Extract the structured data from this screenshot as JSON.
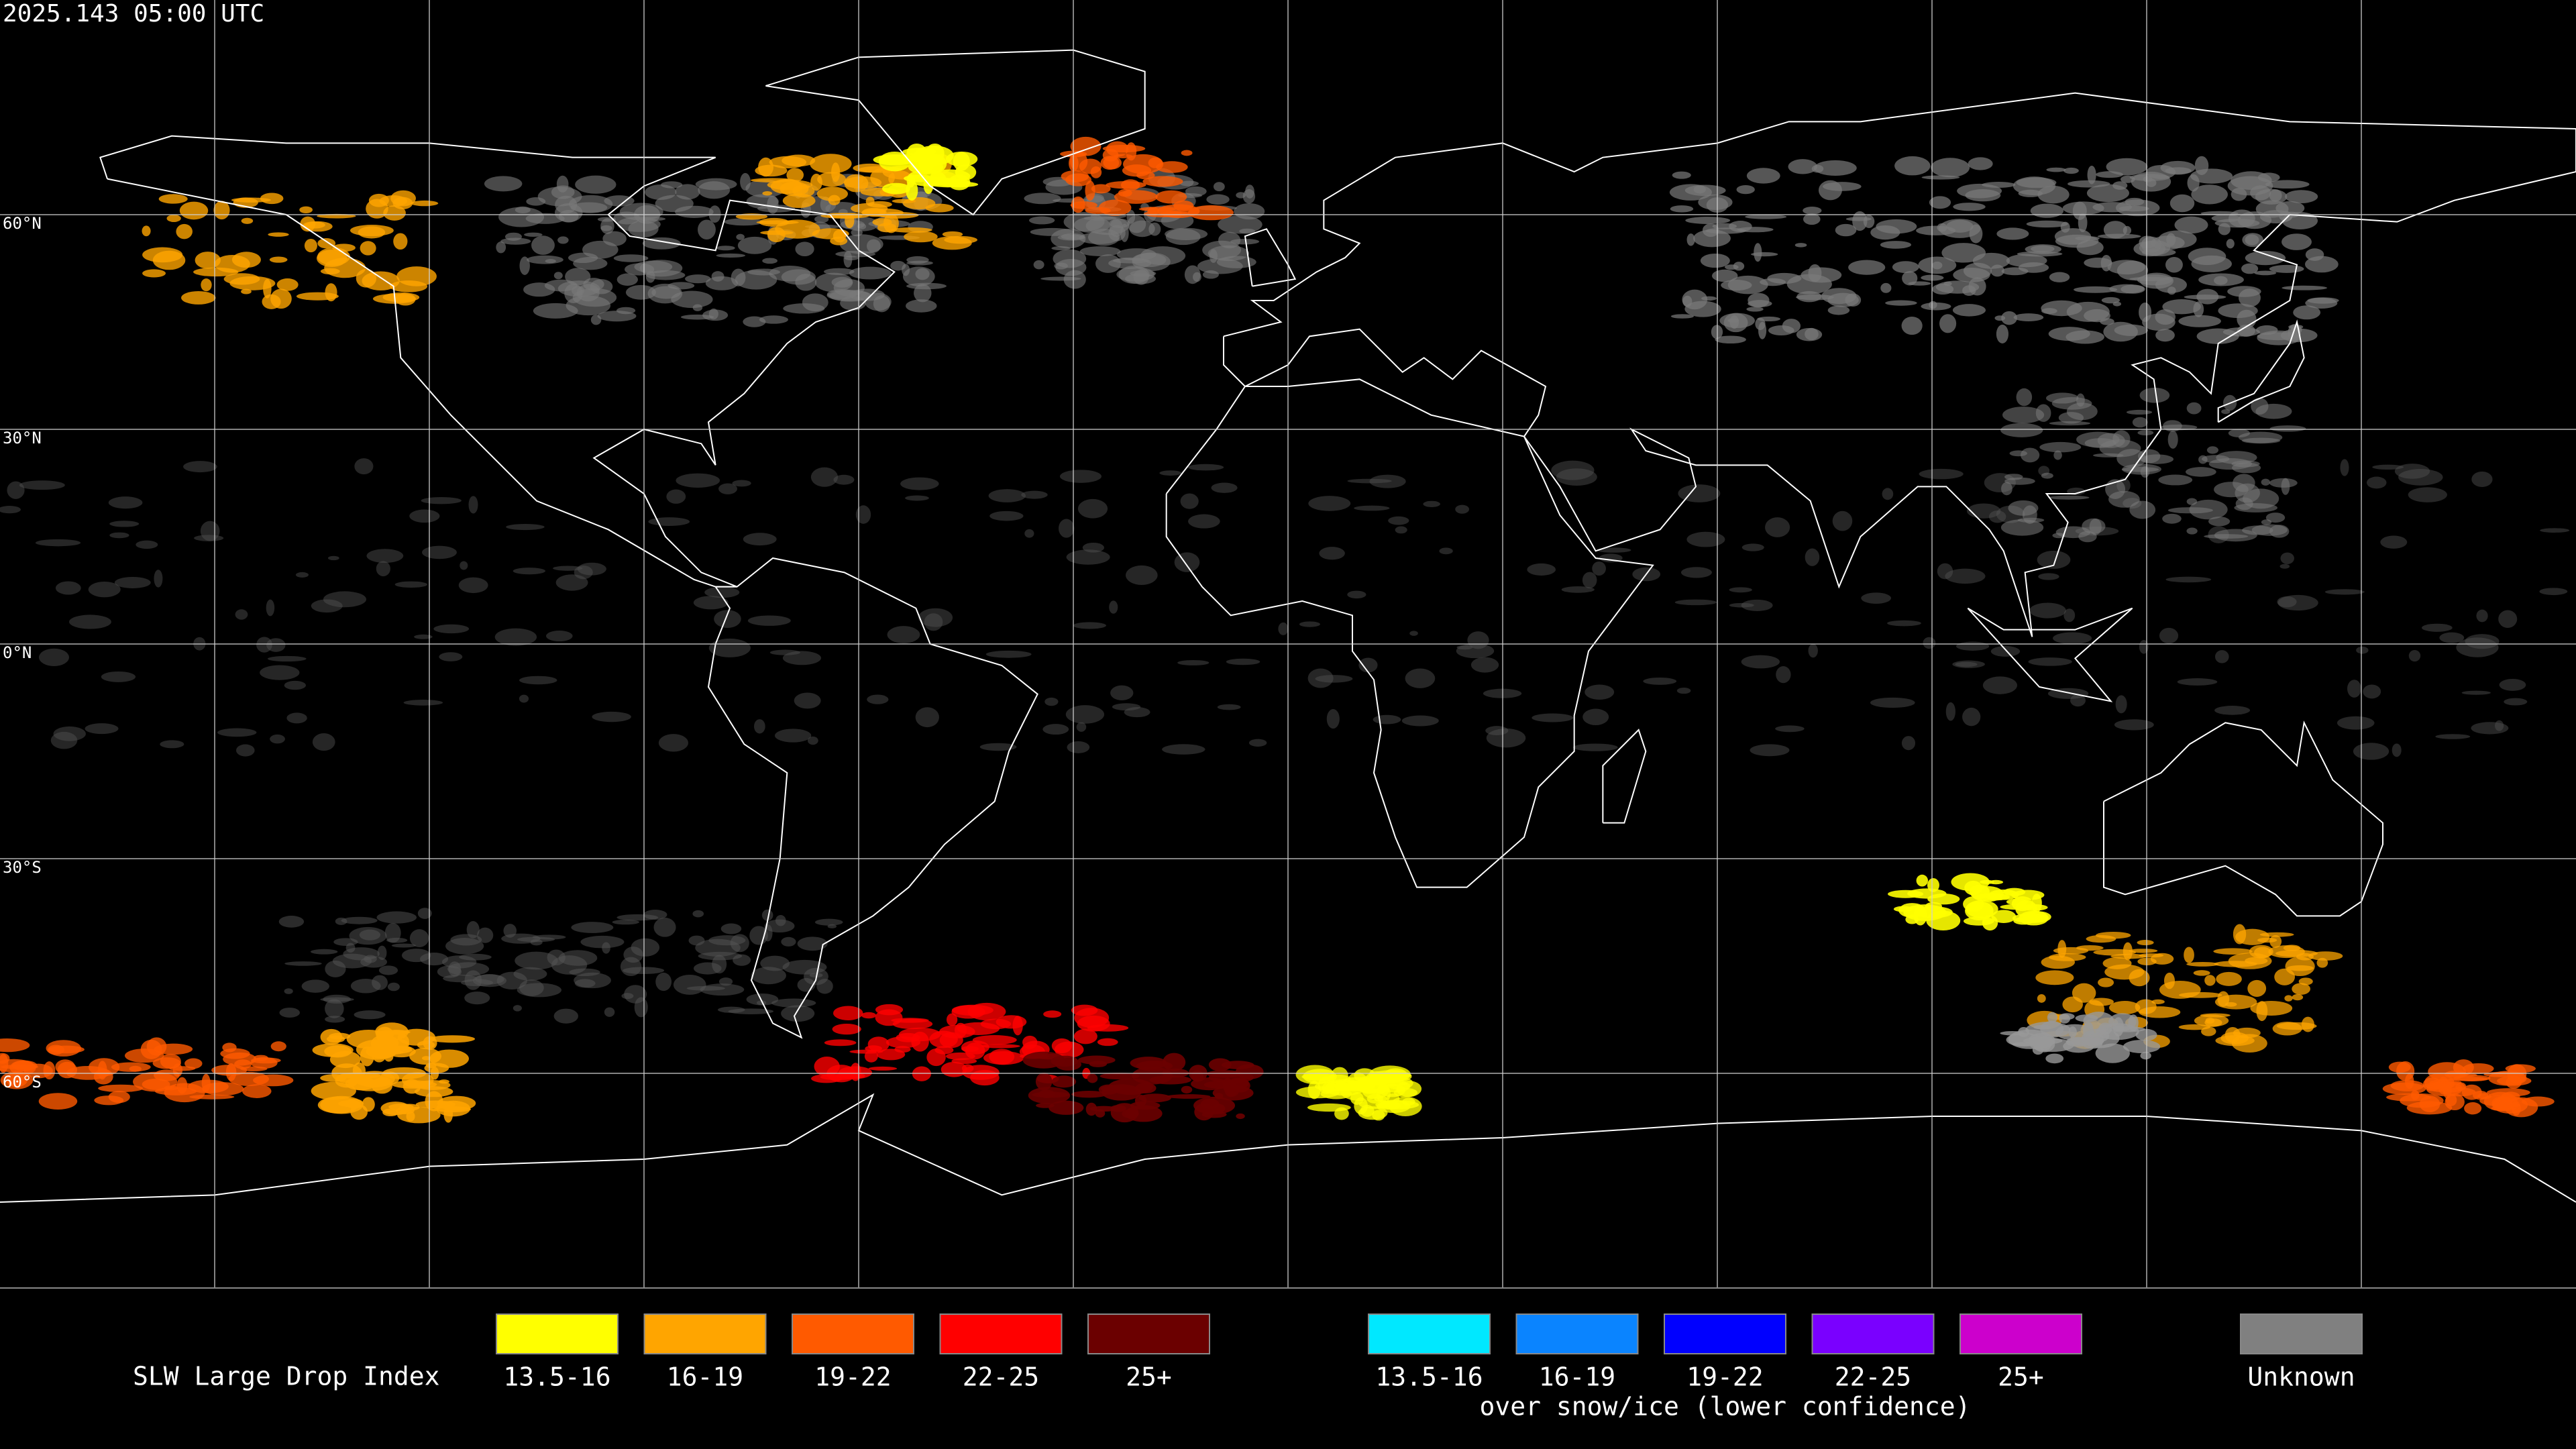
{
  "header": {
    "title": "2025.143 05:00 UTC"
  },
  "map": {
    "latitude_labels": [
      "60°N",
      "30°N",
      "0°N",
      "30°S",
      "60°S"
    ]
  },
  "legend": {
    "title": "SLW Large Drop Index",
    "groups": [
      {
        "items": [
          {
            "label": "13.5-16",
            "color": "#ffff00"
          },
          {
            "label": "16-19",
            "color": "#ffa500"
          },
          {
            "label": "19-22",
            "color": "#ff5a00"
          },
          {
            "label": "22-25",
            "color": "#ff0000"
          },
          {
            "label": "25+",
            "color": "#6b0000"
          }
        ]
      },
      {
        "items": [
          {
            "label": "13.5-16",
            "color": "#00e8ff"
          },
          {
            "label": "16-19",
            "color": "#0a84ff"
          },
          {
            "label": "19-22",
            "color": "#0000ff"
          },
          {
            "label": "22-25",
            "color": "#7a00ff"
          },
          {
            "label": "25+",
            "color": "#cc00cc"
          }
        ],
        "caption": "over snow/ice (lower confidence)"
      }
    ],
    "unknown": {
      "label": "Unknown",
      "color": "#808080"
    }
  }
}
